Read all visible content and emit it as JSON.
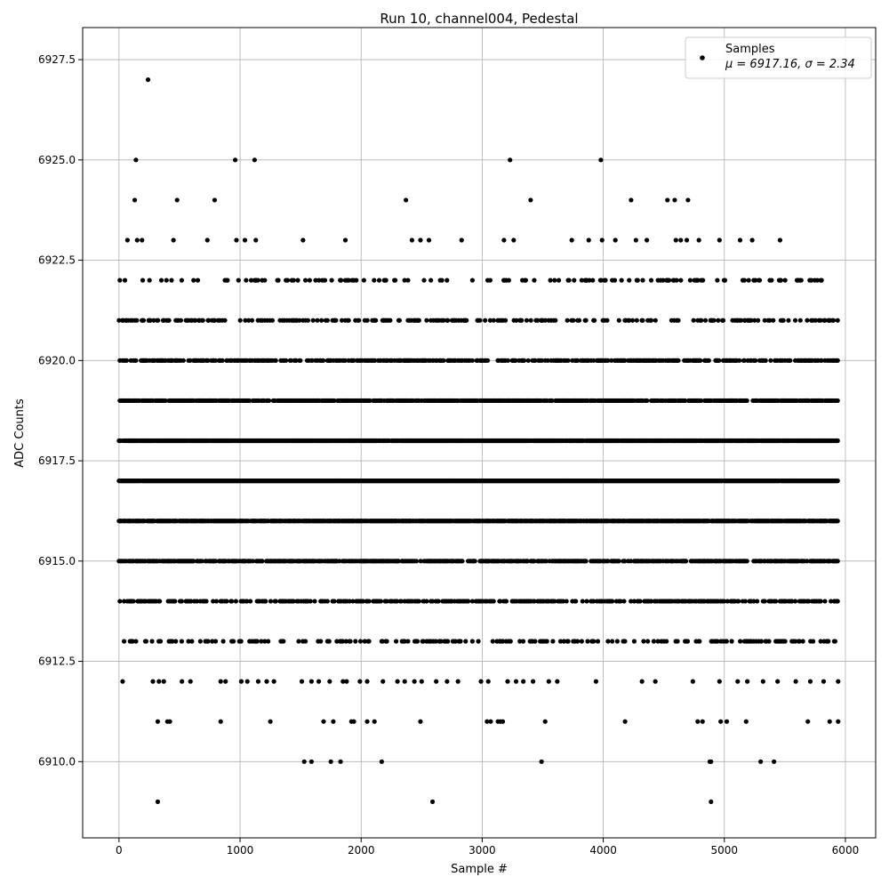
{
  "chart_data": {
    "type": "scatter",
    "title": "Run 10, channel004, Pedestal",
    "xlabel": "Sample #",
    "ylabel": "ADC Counts",
    "xlim": [
      -300,
      6250
    ],
    "ylim": [
      6908.1,
      6928.3
    ],
    "xticks": [
      0,
      1000,
      2000,
      3000,
      4000,
      5000,
      6000
    ],
    "xtick_labels": [
      "0",
      "1000",
      "2000",
      "3000",
      "4000",
      "5000",
      "6000"
    ],
    "yticks": [
      6910.0,
      6912.5,
      6915.0,
      6917.5,
      6920.0,
      6922.5,
      6925.0,
      6927.5
    ],
    "ytick_labels": [
      "6910.0",
      "6912.5",
      "6915.0",
      "6917.5",
      "6920.0",
      "6922.5",
      "6925.0",
      "6927.5"
    ],
    "grid": true,
    "legend_position": "top-right",
    "series": [
      {
        "name": "Samples",
        "color": "#000000",
        "marker": "circle",
        "legend_stats": "μ = 6917.16, σ = 2.34",
        "x_range": [
          0,
          5940
        ],
        "levels": [
          {
            "y": 6909,
            "x": [
              320,
              2590,
              4890
            ]
          },
          {
            "y": 6910,
            "x": [
              1530,
              1590,
              1750,
              1830,
              2170,
              3490,
              4880,
              4890,
              5300,
              5410
            ]
          },
          {
            "y": 6911,
            "x": [
              320,
              400,
              420,
              840,
              1250,
              1690,
              1770,
              1920,
              1940,
              2050,
              2110,
              2490,
              3040,
              3070,
              3130,
              3150,
              3170,
              3520,
              4180,
              4780,
              4820,
              4970,
              5020,
              5180,
              5690,
              5870,
              5940
            ]
          },
          {
            "y": 6912,
            "x": [
              30,
              280,
              330,
              370,
              520,
              590,
              840,
              880,
              1010,
              1060,
              1150,
              1220,
              1280,
              1510,
              1590,
              1650,
              1740,
              1850,
              1880,
              1990,
              2050,
              2180,
              2300,
              2360,
              2440,
              2500,
              2620,
              2710,
              2800,
              2990,
              3050,
              3210,
              3280,
              3340,
              3420,
              3550,
              3620,
              3940,
              4320,
              4430,
              4740,
              4960,
              5110,
              5190,
              5320,
              5440,
              5590,
              5710,
              5820,
              5940
            ]
          },
          {
            "y": 6925,
            "x": [
              140,
              960,
              1120,
              3230,
              3980
            ]
          },
          {
            "y": 6924,
            "x": [
              130,
              480,
              790,
              2370,
              3400,
              4230,
              4530,
              4590,
              4700
            ]
          },
          {
            "y": 6923,
            "x": [
              70,
              150,
              190,
              450,
              730,
              970,
              1040,
              1130,
              1520,
              1870,
              2420,
              2490,
              2560,
              2830,
              3180,
              3260,
              3740,
              3880,
              3990,
              4100,
              4270,
              4360,
              4600,
              4640,
              4690,
              4790,
              4960,
              5130,
              5230,
              5460
            ]
          },
          {
            "y": 6927,
            "x": [
              240
            ]
          }
        ],
        "dense_levels": [
          6913,
          6914,
          6915,
          6916,
          6917,
          6918,
          6919,
          6920,
          6921,
          6922
        ],
        "mu": 6917.16,
        "sigma": 2.34
      }
    ]
  }
}
